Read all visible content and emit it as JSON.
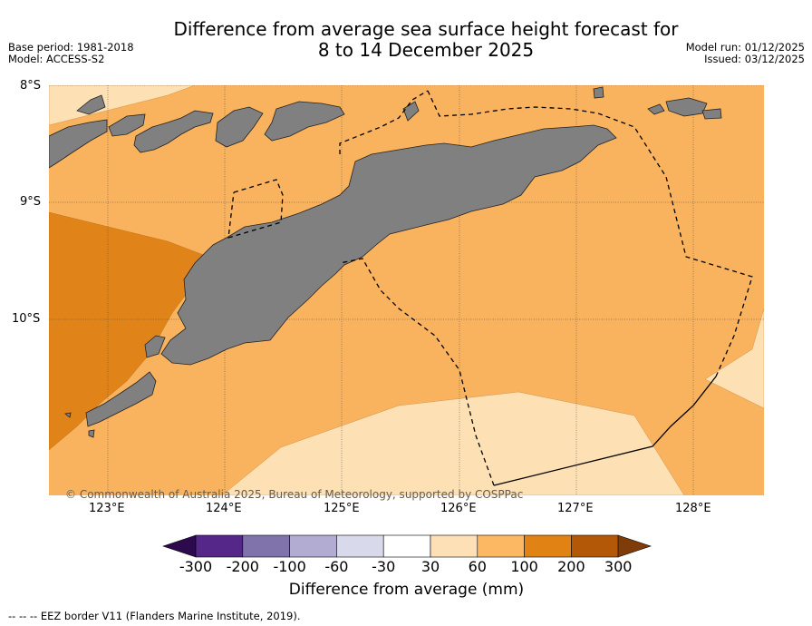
{
  "header": {
    "title_line1": "Difference from average sea surface height forecast for",
    "title_line2": "8 to 14 December 2025",
    "base_period": "Base period: 1981-2018",
    "model": "Model: ACCESS-S2",
    "model_run": "Model run: 01/12/2025",
    "issued": "Issued: 03/12/2025"
  },
  "map": {
    "lat_labels": [
      "8°S",
      "9°S",
      "10°S"
    ],
    "lon_labels": [
      "123°E",
      "124°E",
      "125°E",
      "126°E",
      "127°E",
      "128°E"
    ],
    "copyright": "© Commonwealth of Australia 2025, Bureau of Meteorology, supported by COSPPac",
    "land_color": "#808080",
    "zone_colors": {
      "c30_60": "#fde0b4",
      "c60_100": "#f9b35e",
      "c100_200": "#e0841a"
    }
  },
  "colorbar": {
    "ticks": [
      "-300",
      "-200",
      "-100",
      "-60",
      "-30",
      "30",
      "60",
      "100",
      "200",
      "300"
    ],
    "colors": [
      "#2d0a4e",
      "#542788",
      "#8073ac",
      "#b2abd2",
      "#d8daeb",
      "#ffffff",
      "#fee0b6",
      "#fdb863",
      "#e08214",
      "#b35806",
      "#7f3b08"
    ],
    "label": "Difference from average (mm)"
  },
  "footer": {
    "legend": "--  --  -- EEZ border V11 (Flanders Marine Institute, 2019)."
  }
}
